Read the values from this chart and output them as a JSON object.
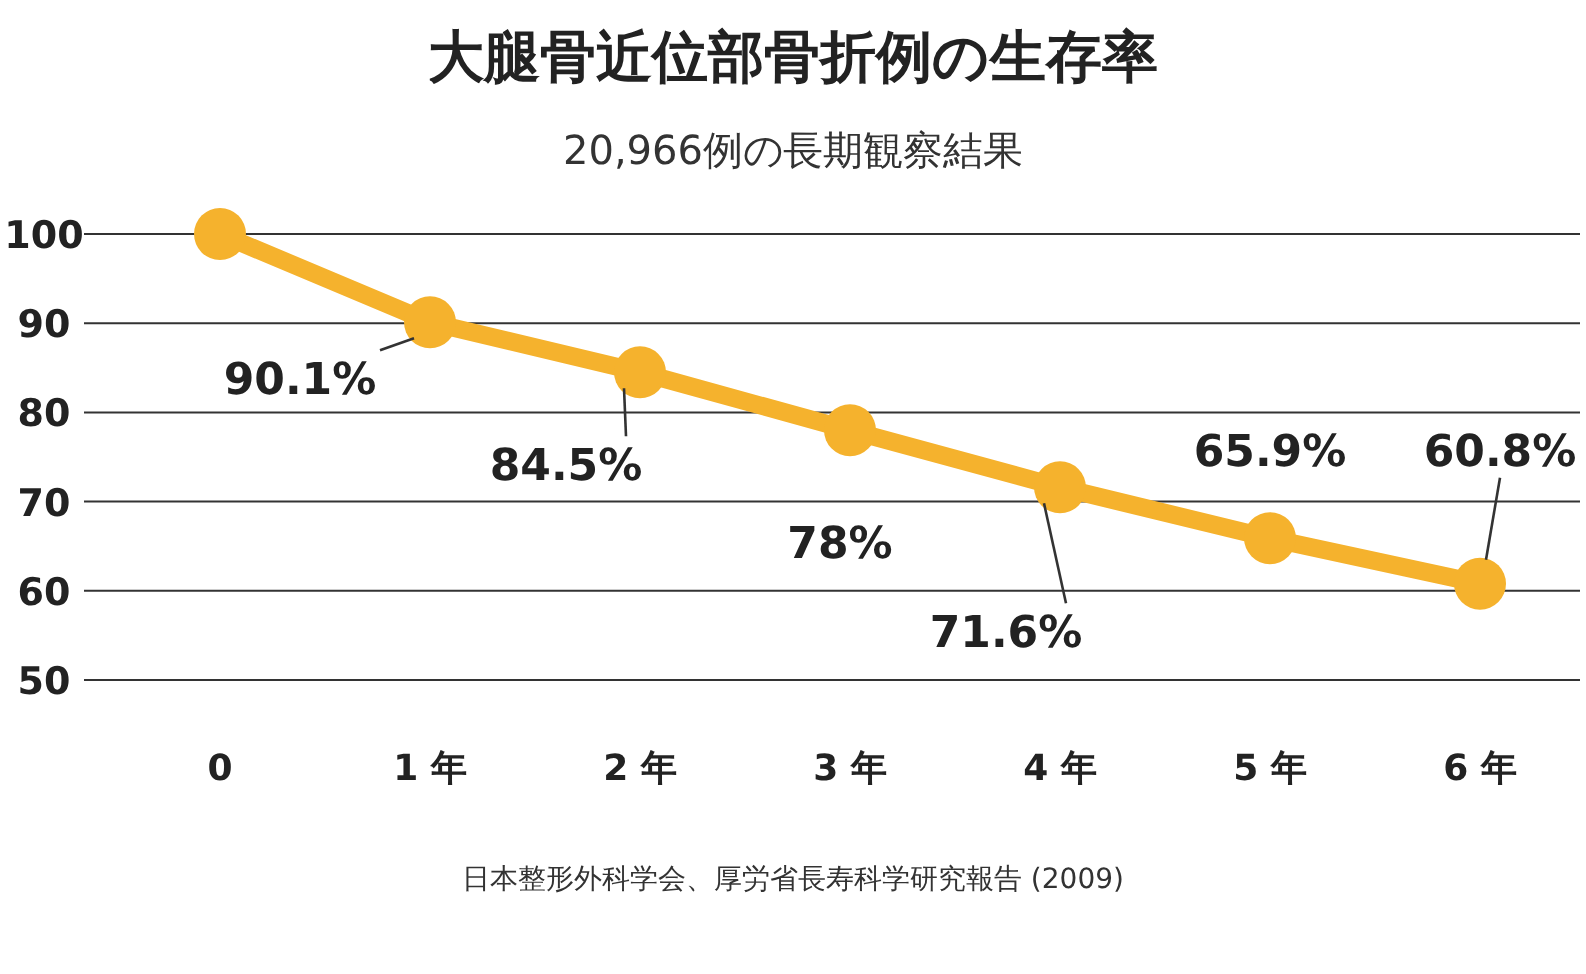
{
  "chart_data": {
    "type": "line",
    "title": "大腿骨近位部骨折例の生存率",
    "subtitle": "20,966例の長期観察結果",
    "categories": [
      "0",
      "1 年",
      "2 年",
      "3 年",
      "4 年",
      "5 年",
      "6 年"
    ],
    "values": [
      100,
      90.1,
      84.5,
      78,
      71.6,
      65.9,
      60.8
    ],
    "value_labels": [
      null,
      "90.1%",
      "84.5%",
      "78%",
      "71.6%",
      "65.9%",
      "60.8%"
    ],
    "color": "#f5b22d",
    "marker": "circle",
    "line_style": "solid",
    "grid": "y",
    "ylim": [
      50,
      100
    ],
    "yticks": [
      50,
      60,
      70,
      80,
      90,
      100
    ],
    "annotations": [
      "日本整形外科学会、厚労省長寿科学研究報告 (2009)"
    ]
  }
}
